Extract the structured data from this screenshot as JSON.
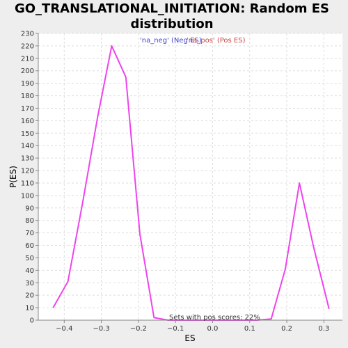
{
  "chart_data": {
    "type": "line",
    "title_line1": "GO_TRANSLATIONAL_INITIATION: Random ES",
    "title_line2": "distribution",
    "xlabel": "ES",
    "ylabel": "P(ES)",
    "xlim": [
      -0.47,
      0.35
    ],
    "ylim": [
      0,
      230
    ],
    "xticks": [
      -0.4,
      -0.3,
      -0.2,
      -0.1,
      0.0,
      0.1,
      0.2,
      0.3
    ],
    "xtick_labels": [
      "−0.4",
      "−0.3",
      "−0.2",
      "−0.1",
      "0.0",
      "0.1",
      "0.2",
      "0.3"
    ],
    "yticks": [
      0,
      10,
      20,
      30,
      40,
      50,
      60,
      70,
      80,
      90,
      100,
      110,
      120,
      130,
      140,
      150,
      160,
      170,
      180,
      190,
      200,
      210,
      220,
      230
    ],
    "grid": true,
    "legend": [
      {
        "label": "'na_neg' (Neg ES)",
        "color": "#4444cc"
      },
      {
        "label": "'na_pos' (Pos ES)",
        "color": "#cc4444"
      }
    ],
    "annotation": "Sets with pos scores: 22%",
    "series": [
      {
        "color": "#ee44ee",
        "points": [
          [
            -0.43,
            10
          ],
          [
            -0.39,
            31
          ],
          [
            -0.35,
            95
          ],
          [
            -0.31,
            163
          ],
          [
            -0.272,
            220
          ],
          [
            -0.234,
            195
          ],
          [
            -0.196,
            69
          ],
          [
            -0.158,
            2
          ],
          [
            -0.12,
            0
          ],
          [
            -0.08,
            0
          ],
          [
            -0.04,
            0
          ],
          [
            0.0,
            0
          ],
          [
            0.04,
            0
          ],
          [
            0.08,
            0
          ],
          [
            0.12,
            0
          ],
          [
            0.158,
            1
          ],
          [
            0.196,
            41
          ],
          [
            0.234,
            110
          ],
          [
            0.272,
            59
          ],
          [
            0.314,
            9
          ]
        ]
      }
    ]
  }
}
